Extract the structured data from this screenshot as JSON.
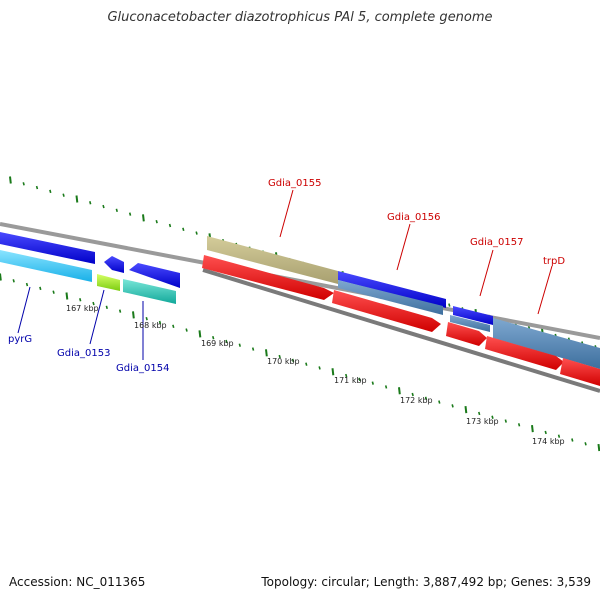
{
  "title": "Gluconacetobacter diazotrophicus PAl 5, complete genome",
  "footer": {
    "accession": "Accession: NC_011365",
    "topology": "Topology: circular; Length: 3,887,492 bp; Genes: 3,539"
  },
  "colors": {
    "reverse_label": "#0000aa",
    "forward_label": "#cc0000",
    "tick": "#1a7a1a",
    "backbone": "#888888"
  },
  "scale_labels": [
    "167 kbp",
    "168 kbp",
    "169 kbp",
    "170 kbp",
    "171 kbp",
    "172 kbp",
    "173 kbp",
    "174 kbp"
  ],
  "gene_labels": [
    {
      "text": "pyrG",
      "strand": "reverse"
    },
    {
      "text": "Gdia_0153",
      "strand": "reverse"
    },
    {
      "text": "Gdia_0154",
      "strand": "reverse"
    },
    {
      "text": "Gdia_0155",
      "strand": "forward"
    },
    {
      "text": "Gdia_0156",
      "strand": "forward"
    },
    {
      "text": "Gdia_0157",
      "strand": "forward"
    },
    {
      "text": "trpD",
      "strand": "forward"
    }
  ]
}
